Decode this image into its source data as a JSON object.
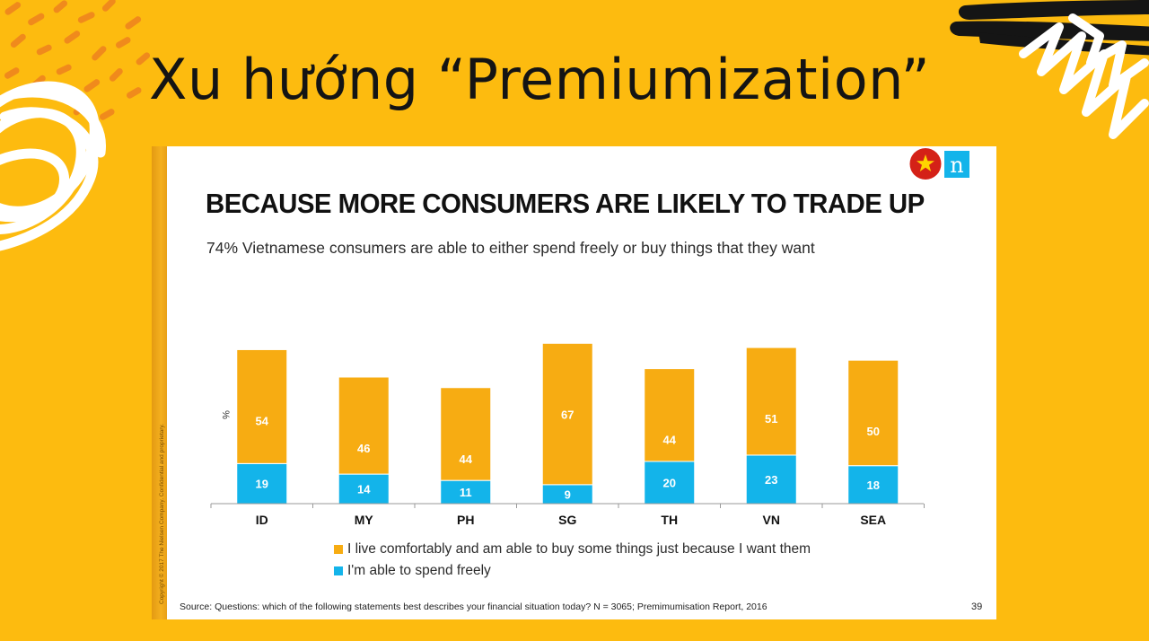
{
  "slide": {
    "title": "Xu hướng “Premiumization”"
  },
  "panel": {
    "copyright": "Copyright © 2017 The Nielsen Company. Confidential and proprietary.",
    "logo_letter": "n",
    "source": "Source: Questions: which of the following statements best describes your financial situation today?  N = 3065; Premimumisation Report, 2016",
    "page_number": "39"
  },
  "colors": {
    "background": "#FDBB0F",
    "bar_comfortable": "#F7AC12",
    "bar_spend_freely": "#13B4EA"
  },
  "chart_data": {
    "type": "bar",
    "stacked": true,
    "title": "BECAUSE MORE CONSUMERS ARE LIKELY TO TRADE UP",
    "subtitle": "74% Vietnamese consumers are able to either spend freely or buy things that they want",
    "ylabel": "%",
    "ylim": [
      0,
      100
    ],
    "grid": false,
    "legend_position": "bottom",
    "categories": [
      "ID",
      "MY",
      "PH",
      "SG",
      "TH",
      "VN",
      "SEA"
    ],
    "series": [
      {
        "name": "I'm able to spend freely",
        "values": [
          19,
          14,
          11,
          9,
          20,
          23,
          18
        ],
        "color": "#13B4EA"
      },
      {
        "name": "I live comfortably and am able to buy some things just because I want them",
        "values": [
          54,
          46,
          44,
          67,
          44,
          51,
          50
        ],
        "color": "#F7AC12"
      }
    ]
  }
}
